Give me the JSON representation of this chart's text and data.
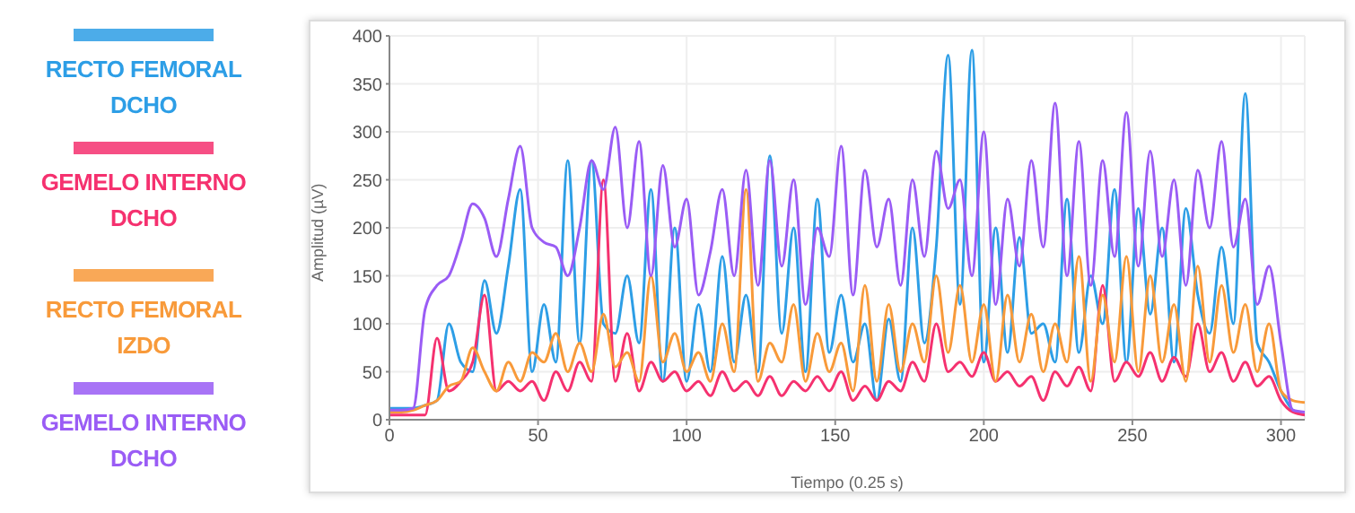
{
  "chart_data": {
    "type": "line",
    "xlabel": "Tiempo (0.25 s)",
    "ylabel": "Amplitud (µV)",
    "x": [
      0,
      4,
      8,
      12,
      16,
      20,
      24,
      28,
      32,
      36,
      40,
      44,
      48,
      52,
      56,
      60,
      64,
      68,
      72,
      76,
      80,
      84,
      88,
      92,
      96,
      100,
      104,
      108,
      112,
      116,
      120,
      124,
      128,
      132,
      136,
      140,
      144,
      148,
      152,
      156,
      160,
      164,
      168,
      172,
      176,
      180,
      184,
      188,
      192,
      196,
      200,
      204,
      208,
      212,
      216,
      220,
      224,
      228,
      232,
      236,
      240,
      244,
      248,
      252,
      256,
      260,
      264,
      268,
      272,
      276,
      280,
      284,
      288,
      292,
      296,
      300,
      304,
      308
    ],
    "xlim": [
      0,
      308
    ],
    "xticks": [
      0,
      50,
      100,
      150,
      200,
      250,
      300
    ],
    "ylim": [
      0,
      400
    ],
    "yticks": [
      0,
      50,
      100,
      150,
      200,
      250,
      300,
      350,
      400
    ],
    "grid": true,
    "legend": "left",
    "marker": "none",
    "line_style": "solid",
    "series": [
      {
        "name": "RECTO FEMORAL DCHO",
        "color": "#2d9ee6",
        "values": [
          12,
          12,
          12,
          15,
          20,
          100,
          60,
          50,
          145,
          90,
          160,
          240,
          50,
          120,
          60,
          270,
          80,
          270,
          100,
          90,
          150,
          80,
          240,
          40,
          200,
          40,
          120,
          50,
          170,
          60,
          130,
          50,
          275,
          90,
          200,
          50,
          230,
          70,
          130,
          60,
          100,
          20,
          105,
          40,
          200,
          80,
          180,
          380,
          120,
          385,
          60,
          200,
          70,
          190,
          90,
          100,
          60,
          230,
          70,
          150,
          100,
          240,
          60,
          220,
          110,
          200,
          60,
          220,
          130,
          90,
          180,
          100,
          340,
          80,
          60,
          30,
          10,
          5
        ]
      },
      {
        "name": "GEMELO INTERNO DCHO",
        "color": "#f5316f",
        "values": [
          5,
          5,
          5,
          5,
          85,
          30,
          40,
          60,
          130,
          30,
          40,
          30,
          40,
          20,
          50,
          30,
          60,
          40,
          250,
          40,
          90,
          30,
          60,
          40,
          50,
          30,
          40,
          25,
          50,
          30,
          40,
          25,
          45,
          25,
          40,
          30,
          45,
          30,
          50,
          20,
          35,
          20,
          40,
          30,
          60,
          40,
          100,
          50,
          60,
          45,
          70,
          40,
          50,
          35,
          45,
          20,
          50,
          35,
          55,
          30,
          140,
          40,
          60,
          45,
          70,
          40,
          65,
          45,
          100,
          50,
          70,
          40,
          60,
          35,
          45,
          20,
          8,
          5
        ]
      },
      {
        "name": "RECTO FEMORAL IZDO",
        "color": "#f89a3a",
        "values": [
          8,
          8,
          10,
          15,
          20,
          35,
          40,
          75,
          50,
          30,
          60,
          40,
          70,
          60,
          90,
          50,
          80,
          50,
          110,
          55,
          70,
          40,
          150,
          60,
          90,
          50,
          70,
          40,
          100,
          50,
          240,
          40,
          80,
          60,
          120,
          40,
          90,
          50,
          80,
          30,
          140,
          40,
          120,
          50,
          100,
          60,
          150,
          70,
          140,
          60,
          120,
          40,
          130,
          60,
          110,
          50,
          100,
          60,
          170,
          40,
          130,
          60,
          170,
          50,
          150,
          60,
          120,
          40,
          160,
          60,
          140,
          70,
          120,
          50,
          100,
          30,
          20,
          18
        ]
      },
      {
        "name": "GEMELO INTERNO DCHO",
        "color": "#9a5cf5",
        "values": [
          10,
          10,
          12,
          115,
          140,
          150,
          185,
          225,
          210,
          170,
          230,
          285,
          200,
          185,
          180,
          150,
          200,
          270,
          240,
          305,
          200,
          290,
          150,
          265,
          180,
          230,
          130,
          175,
          240,
          150,
          260,
          140,
          270,
          160,
          250,
          120,
          200,
          170,
          285,
          130,
          260,
          180,
          230,
          140,
          250,
          170,
          280,
          220,
          250,
          150,
          300,
          120,
          230,
          160,
          270,
          180,
          330,
          150,
          290,
          140,
          270,
          170,
          320,
          160,
          280,
          170,
          250,
          140,
          260,
          200,
          290,
          180,
          230,
          120,
          160,
          80,
          10,
          8
        ]
      }
    ]
  }
}
